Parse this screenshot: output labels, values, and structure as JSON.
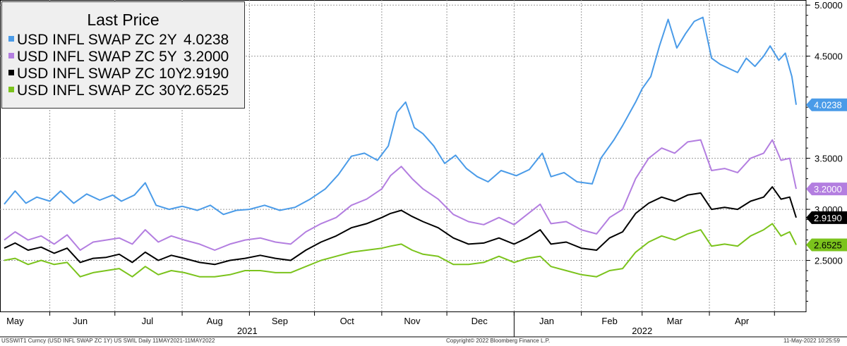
{
  "chart_data": {
    "type": "line",
    "legend_title": "Last Price",
    "legend_position": "top-left",
    "grid": true,
    "ylim": [
      2.0,
      5.05
    ],
    "yticks": [
      "2.5000",
      "3.0000",
      "3.5000",
      "4.5000",
      "5.0000"
    ],
    "ytick_values": [
      2.5,
      3.0,
      3.5,
      4.5,
      5.0
    ],
    "x_start": "2021-05-11",
    "x_end": "2022-05-11",
    "month_labels": [
      "May",
      "Jun",
      "Jul",
      "Aug",
      "Sep",
      "Oct",
      "Nov",
      "Dec",
      "Jan",
      "Feb",
      "Mar",
      "Apr"
    ],
    "month_dates": [
      "2021-05-16",
      "2021-06-15",
      "2021-07-16",
      "2021-08-16",
      "2021-09-15",
      "2021-10-16",
      "2021-11-15",
      "2021-12-16",
      "2022-01-16",
      "2022-02-14",
      "2022-03-16",
      "2022-04-16"
    ],
    "year_labels": [
      "2021",
      "2022"
    ],
    "year_dates": [
      "2021-08-31",
      "2022-03-01"
    ],
    "series": [
      {
        "name": "USD INFL SWAP ZC 2Y",
        "last": "4.0238",
        "color": "#4a9be8",
        "label_bg": "#4a9be8",
        "label_fg": "#ffffff",
        "points": [
          [
            "2021-05-11",
            3.05
          ],
          [
            "2021-05-16",
            3.18
          ],
          [
            "2021-05-21",
            3.06
          ],
          [
            "2021-05-26",
            3.12
          ],
          [
            "2021-06-01",
            3.08
          ],
          [
            "2021-06-06",
            3.18
          ],
          [
            "2021-06-12",
            3.06
          ],
          [
            "2021-06-18",
            3.15
          ],
          [
            "2021-06-24",
            3.09
          ],
          [
            "2021-06-30",
            3.14
          ],
          [
            "2021-07-04",
            3.08
          ],
          [
            "2021-07-10",
            3.14
          ],
          [
            "2021-07-15",
            3.26
          ],
          [
            "2021-07-20",
            3.04
          ],
          [
            "2021-07-26",
            3.0
          ],
          [
            "2021-08-01",
            3.03
          ],
          [
            "2021-08-08",
            2.99
          ],
          [
            "2021-08-14",
            3.04
          ],
          [
            "2021-08-20",
            2.95
          ],
          [
            "2021-08-26",
            2.99
          ],
          [
            "2021-09-01",
            3.0
          ],
          [
            "2021-09-08",
            3.04
          ],
          [
            "2021-09-15",
            2.99
          ],
          [
            "2021-09-22",
            3.02
          ],
          [
            "2021-09-29",
            3.1
          ],
          [
            "2021-10-06",
            3.2
          ],
          [
            "2021-10-12",
            3.34
          ],
          [
            "2021-10-18",
            3.52
          ],
          [
            "2021-10-24",
            3.55
          ],
          [
            "2021-10-30",
            3.48
          ],
          [
            "2021-11-04",
            3.62
          ],
          [
            "2021-11-08",
            3.95
          ],
          [
            "2021-11-12",
            4.05
          ],
          [
            "2021-11-16",
            3.8
          ],
          [
            "2021-11-20",
            3.74
          ],
          [
            "2021-11-25",
            3.62
          ],
          [
            "2021-11-30",
            3.45
          ],
          [
            "2021-12-05",
            3.53
          ],
          [
            "2021-12-10",
            3.4
          ],
          [
            "2021-12-15",
            3.32
          ],
          [
            "2021-12-20",
            3.27
          ],
          [
            "2021-12-26",
            3.38
          ],
          [
            "2022-01-02",
            3.33
          ],
          [
            "2022-01-08",
            3.39
          ],
          [
            "2022-01-14",
            3.55
          ],
          [
            "2022-01-18",
            3.32
          ],
          [
            "2022-01-24",
            3.36
          ],
          [
            "2022-01-30",
            3.27
          ],
          [
            "2022-02-06",
            3.25
          ],
          [
            "2022-02-10",
            3.5
          ],
          [
            "2022-02-16",
            3.68
          ],
          [
            "2022-02-20",
            3.82
          ],
          [
            "2022-02-26",
            4.05
          ],
          [
            "2022-03-01",
            4.18
          ],
          [
            "2022-03-05",
            4.3
          ],
          [
            "2022-03-09",
            4.6
          ],
          [
            "2022-03-13",
            4.86
          ],
          [
            "2022-03-17",
            4.58
          ],
          [
            "2022-03-21",
            4.72
          ],
          [
            "2022-03-25",
            4.84
          ],
          [
            "2022-03-29",
            4.88
          ],
          [
            "2022-04-02",
            4.48
          ],
          [
            "2022-04-06",
            4.42
          ],
          [
            "2022-04-10",
            4.38
          ],
          [
            "2022-04-14",
            4.34
          ],
          [
            "2022-04-18",
            4.48
          ],
          [
            "2022-04-22",
            4.4
          ],
          [
            "2022-04-26",
            4.5
          ],
          [
            "2022-04-29",
            4.6
          ],
          [
            "2022-05-03",
            4.46
          ],
          [
            "2022-05-06",
            4.53
          ],
          [
            "2022-05-09",
            4.3
          ],
          [
            "2022-05-11",
            4.0238
          ]
        ]
      },
      {
        "name": "USD INFL SWAP ZC 5Y",
        "last": "3.2000",
        "color": "#b37ee0",
        "label_bg": "#b37ee0",
        "label_fg": "#ffffff",
        "points": [
          [
            "2021-05-11",
            2.7
          ],
          [
            "2021-05-16",
            2.78
          ],
          [
            "2021-05-22",
            2.7
          ],
          [
            "2021-05-28",
            2.74
          ],
          [
            "2021-06-03",
            2.66
          ],
          [
            "2021-06-09",
            2.75
          ],
          [
            "2021-06-15",
            2.6
          ],
          [
            "2021-06-21",
            2.68
          ],
          [
            "2021-06-27",
            2.7
          ],
          [
            "2021-07-03",
            2.72
          ],
          [
            "2021-07-09",
            2.66
          ],
          [
            "2021-07-15",
            2.8
          ],
          [
            "2021-07-21",
            2.68
          ],
          [
            "2021-07-27",
            2.74
          ],
          [
            "2021-08-02",
            2.7
          ],
          [
            "2021-08-09",
            2.66
          ],
          [
            "2021-08-16",
            2.6
          ],
          [
            "2021-08-23",
            2.66
          ],
          [
            "2021-08-30",
            2.7
          ],
          [
            "2021-09-06",
            2.72
          ],
          [
            "2021-09-13",
            2.68
          ],
          [
            "2021-09-20",
            2.66
          ],
          [
            "2021-09-27",
            2.78
          ],
          [
            "2021-10-04",
            2.86
          ],
          [
            "2021-10-11",
            2.92
          ],
          [
            "2021-10-18",
            3.04
          ],
          [
            "2021-10-25",
            3.1
          ],
          [
            "2021-11-01",
            3.2
          ],
          [
            "2021-11-05",
            3.33
          ],
          [
            "2021-11-10",
            3.42
          ],
          [
            "2021-11-15",
            3.3
          ],
          [
            "2021-11-20",
            3.2
          ],
          [
            "2021-11-27",
            3.1
          ],
          [
            "2021-12-04",
            2.95
          ],
          [
            "2021-12-11",
            2.88
          ],
          [
            "2021-12-18",
            2.85
          ],
          [
            "2021-12-25",
            2.92
          ],
          [
            "2022-01-01",
            2.85
          ],
          [
            "2022-01-07",
            2.95
          ],
          [
            "2022-01-13",
            3.05
          ],
          [
            "2022-01-18",
            2.86
          ],
          [
            "2022-01-25",
            2.88
          ],
          [
            "2022-02-01",
            2.8
          ],
          [
            "2022-02-08",
            2.76
          ],
          [
            "2022-02-14",
            2.92
          ],
          [
            "2022-02-20",
            3.0
          ],
          [
            "2022-02-26",
            3.3
          ],
          [
            "2022-03-04",
            3.5
          ],
          [
            "2022-03-10",
            3.6
          ],
          [
            "2022-03-16",
            3.55
          ],
          [
            "2022-03-22",
            3.66
          ],
          [
            "2022-03-28",
            3.68
          ],
          [
            "2022-04-02",
            3.38
          ],
          [
            "2022-04-08",
            3.4
          ],
          [
            "2022-04-14",
            3.36
          ],
          [
            "2022-04-20",
            3.5
          ],
          [
            "2022-04-26",
            3.55
          ],
          [
            "2022-04-30",
            3.68
          ],
          [
            "2022-05-04",
            3.48
          ],
          [
            "2022-05-08",
            3.5
          ],
          [
            "2022-05-11",
            3.2
          ]
        ]
      },
      {
        "name": "USD INFL SWAP ZC 10Y",
        "last": "2.9190",
        "color": "#000000",
        "label_bg": "#000000",
        "label_fg": "#ffffff",
        "points": [
          [
            "2021-05-11",
            2.62
          ],
          [
            "2021-05-16",
            2.67
          ],
          [
            "2021-05-22",
            2.6
          ],
          [
            "2021-05-28",
            2.63
          ],
          [
            "2021-06-03",
            2.57
          ],
          [
            "2021-06-09",
            2.62
          ],
          [
            "2021-06-15",
            2.48
          ],
          [
            "2021-06-21",
            2.52
          ],
          [
            "2021-06-27",
            2.53
          ],
          [
            "2021-07-03",
            2.56
          ],
          [
            "2021-07-09",
            2.48
          ],
          [
            "2021-07-15",
            2.58
          ],
          [
            "2021-07-21",
            2.5
          ],
          [
            "2021-07-27",
            2.55
          ],
          [
            "2021-08-02",
            2.52
          ],
          [
            "2021-08-09",
            2.48
          ],
          [
            "2021-08-16",
            2.46
          ],
          [
            "2021-08-23",
            2.5
          ],
          [
            "2021-08-30",
            2.52
          ],
          [
            "2021-09-06",
            2.55
          ],
          [
            "2021-09-13",
            2.52
          ],
          [
            "2021-09-20",
            2.5
          ],
          [
            "2021-09-27",
            2.6
          ],
          [
            "2021-10-04",
            2.68
          ],
          [
            "2021-10-11",
            2.74
          ],
          [
            "2021-10-18",
            2.82
          ],
          [
            "2021-10-25",
            2.86
          ],
          [
            "2021-11-01",
            2.92
          ],
          [
            "2021-11-05",
            2.96
          ],
          [
            "2021-11-10",
            2.99
          ],
          [
            "2021-11-15",
            2.93
          ],
          [
            "2021-11-20",
            2.88
          ],
          [
            "2021-11-27",
            2.82
          ],
          [
            "2021-12-04",
            2.72
          ],
          [
            "2021-12-11",
            2.66
          ],
          [
            "2021-12-18",
            2.67
          ],
          [
            "2021-12-25",
            2.72
          ],
          [
            "2022-01-01",
            2.66
          ],
          [
            "2022-01-07",
            2.72
          ],
          [
            "2022-01-13",
            2.8
          ],
          [
            "2022-01-18",
            2.66
          ],
          [
            "2022-01-25",
            2.68
          ],
          [
            "2022-02-01",
            2.62
          ],
          [
            "2022-02-08",
            2.6
          ],
          [
            "2022-02-14",
            2.72
          ],
          [
            "2022-02-20",
            2.78
          ],
          [
            "2022-02-26",
            2.96
          ],
          [
            "2022-03-04",
            3.06
          ],
          [
            "2022-03-10",
            3.12
          ],
          [
            "2022-03-16",
            3.08
          ],
          [
            "2022-03-22",
            3.14
          ],
          [
            "2022-03-28",
            3.16
          ],
          [
            "2022-04-02",
            3.0
          ],
          [
            "2022-04-08",
            3.02
          ],
          [
            "2022-04-14",
            3.0
          ],
          [
            "2022-04-20",
            3.08
          ],
          [
            "2022-04-26",
            3.12
          ],
          [
            "2022-04-30",
            3.22
          ],
          [
            "2022-05-04",
            3.1
          ],
          [
            "2022-05-08",
            3.12
          ],
          [
            "2022-05-11",
            2.919
          ]
        ]
      },
      {
        "name": "USD INFL SWAP ZC 30Y",
        "last": "2.6525",
        "color": "#7bc31c",
        "label_bg": "#7bc31c",
        "label_fg": "#000000",
        "points": [
          [
            "2021-05-11",
            2.5
          ],
          [
            "2021-05-16",
            2.52
          ],
          [
            "2021-05-22",
            2.46
          ],
          [
            "2021-05-28",
            2.5
          ],
          [
            "2021-06-03",
            2.46
          ],
          [
            "2021-06-09",
            2.48
          ],
          [
            "2021-06-15",
            2.34
          ],
          [
            "2021-06-21",
            2.38
          ],
          [
            "2021-06-27",
            2.4
          ],
          [
            "2021-07-03",
            2.42
          ],
          [
            "2021-07-09",
            2.34
          ],
          [
            "2021-07-15",
            2.44
          ],
          [
            "2021-07-21",
            2.36
          ],
          [
            "2021-07-27",
            2.4
          ],
          [
            "2021-08-02",
            2.38
          ],
          [
            "2021-08-09",
            2.34
          ],
          [
            "2021-08-16",
            2.34
          ],
          [
            "2021-08-23",
            2.36
          ],
          [
            "2021-08-30",
            2.4
          ],
          [
            "2021-09-06",
            2.4
          ],
          [
            "2021-09-13",
            2.38
          ],
          [
            "2021-09-20",
            2.38
          ],
          [
            "2021-09-27",
            2.44
          ],
          [
            "2021-10-04",
            2.5
          ],
          [
            "2021-10-11",
            2.54
          ],
          [
            "2021-10-18",
            2.58
          ],
          [
            "2021-10-25",
            2.6
          ],
          [
            "2021-11-01",
            2.62
          ],
          [
            "2021-11-05",
            2.64
          ],
          [
            "2021-11-10",
            2.66
          ],
          [
            "2021-11-15",
            2.6
          ],
          [
            "2021-11-20",
            2.56
          ],
          [
            "2021-11-27",
            2.54
          ],
          [
            "2021-12-04",
            2.46
          ],
          [
            "2021-12-11",
            2.46
          ],
          [
            "2021-12-18",
            2.48
          ],
          [
            "2021-12-25",
            2.54
          ],
          [
            "2022-01-01",
            2.48
          ],
          [
            "2022-01-07",
            2.52
          ],
          [
            "2022-01-13",
            2.54
          ],
          [
            "2022-01-18",
            2.44
          ],
          [
            "2022-01-25",
            2.4
          ],
          [
            "2022-02-01",
            2.36
          ],
          [
            "2022-02-08",
            2.34
          ],
          [
            "2022-02-14",
            2.4
          ],
          [
            "2022-02-20",
            2.42
          ],
          [
            "2022-02-26",
            2.58
          ],
          [
            "2022-03-04",
            2.68
          ],
          [
            "2022-03-10",
            2.74
          ],
          [
            "2022-03-16",
            2.7
          ],
          [
            "2022-03-22",
            2.76
          ],
          [
            "2022-03-28",
            2.8
          ],
          [
            "2022-04-02",
            2.64
          ],
          [
            "2022-04-08",
            2.66
          ],
          [
            "2022-04-14",
            2.64
          ],
          [
            "2022-04-20",
            2.74
          ],
          [
            "2022-04-26",
            2.8
          ],
          [
            "2022-04-30",
            2.86
          ],
          [
            "2022-05-04",
            2.74
          ],
          [
            "2022-05-08",
            2.78
          ],
          [
            "2022-05-11",
            2.6525
          ]
        ]
      }
    ]
  },
  "footer": {
    "left": "USSWIT1 Curncy (USD INFL SWAP ZC 1Y) US SWIL  Daily 11MAY2021-11MAY2022",
    "center": "Copyright© 2022 Bloomberg Finance L.P.",
    "right": "11-May-2022 10:25:59"
  }
}
